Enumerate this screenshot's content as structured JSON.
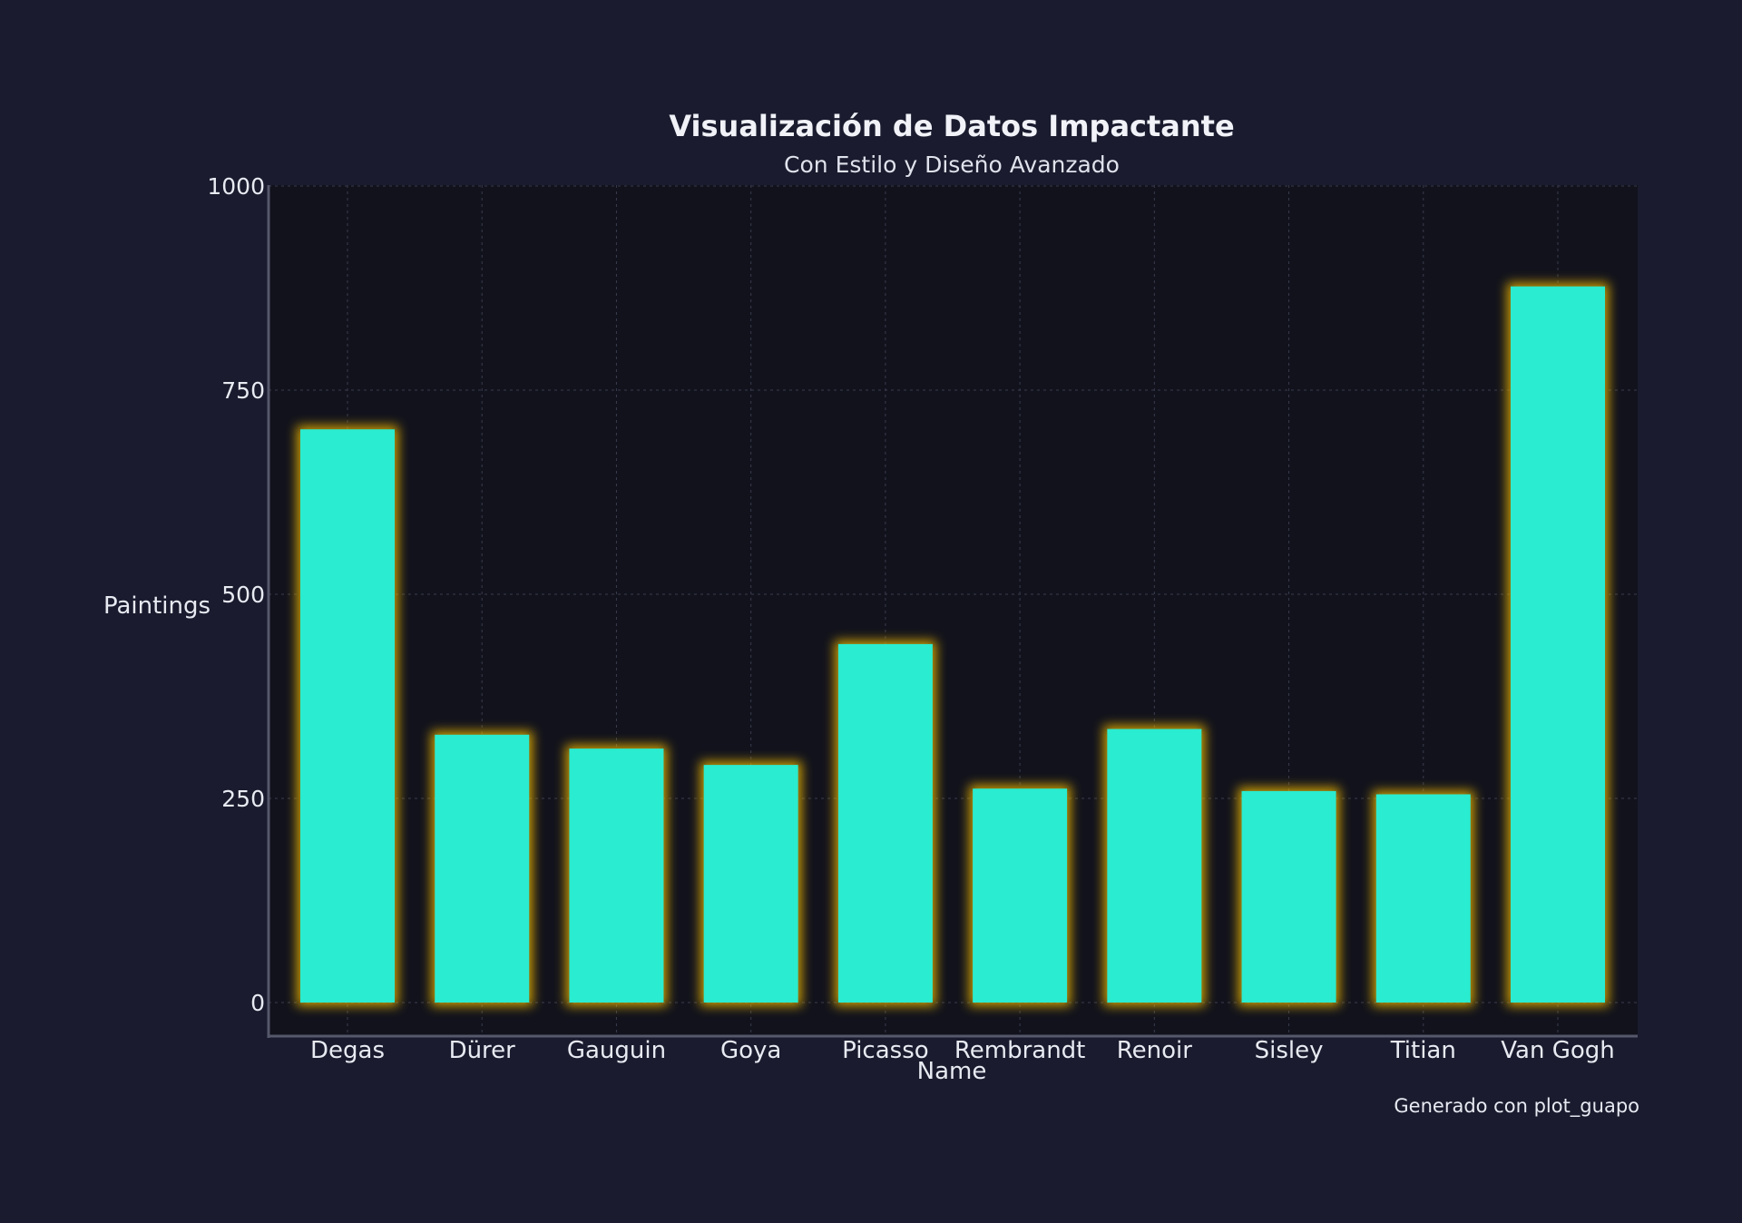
{
  "chart_data": {
    "type": "bar",
    "title": "Visualización de Datos Impactante",
    "subtitle": "Con Estilo y Diseño Avanzado",
    "xlabel": "Name",
    "ylabel": "Paintings",
    "categories": [
      "Degas",
      "Dürer",
      "Gauguin",
      "Goya",
      "Picasso",
      "Rembrandt",
      "Renoir",
      "Sisley",
      "Titian",
      "Van Gogh"
    ],
    "values": [
      702,
      328,
      311,
      291,
      439,
      262,
      335,
      259,
      255,
      877
    ],
    "ylim": [
      0,
      1000
    ],
    "yticks": [
      "0",
      "250",
      "500",
      "750",
      "1000"
    ],
    "ytick_values": [
      0,
      250,
      500,
      750,
      1000
    ],
    "grid": true,
    "caption": "Generado con plot_guapo",
    "colors": {
      "background": "#1a1b2e",
      "plot_background": "#11121c",
      "bar_fill": "#2aecd0",
      "bar_glow": "#e8b400",
      "grid": "#3a3c4e",
      "axis": "#55576a",
      "text": "#e8eaf2"
    }
  }
}
